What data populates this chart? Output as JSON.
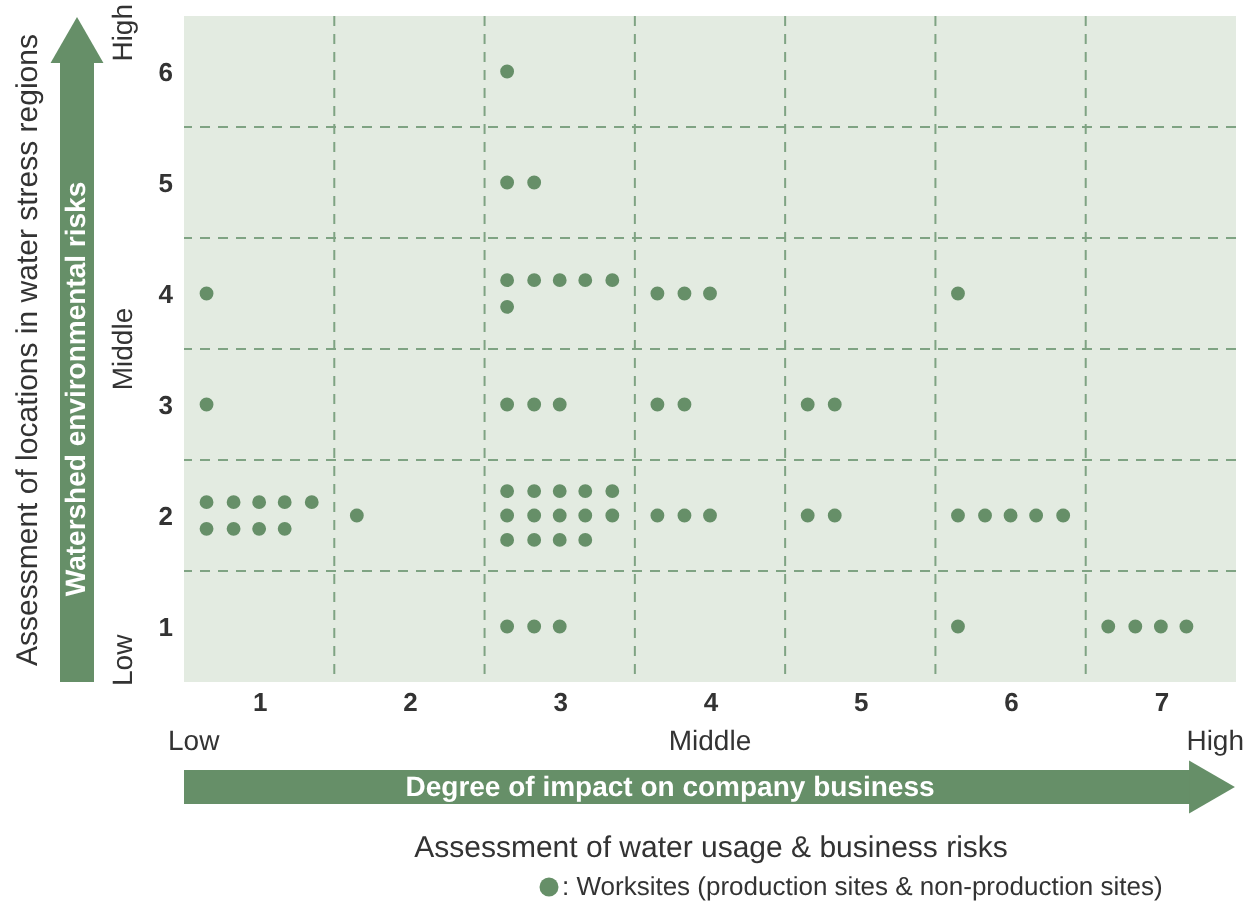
{
  "chart_data": {
    "type": "scatter",
    "xlabel": "Assessment of water usage & business risks",
    "ylabel": "Assessment of locations in water stress regions",
    "annotations": [
      "Low",
      "Middle",
      "High",
      "Low",
      "Middle",
      "High",
      "Degree of impact on company business",
      "Watershed environmental risks"
    ],
    "xlim": [
      0.5,
      7.5
    ],
    "ylim": [
      0.5,
      6.5
    ],
    "xticks": [
      1,
      {
        "value": 1.5,
        "label": null
      },
      2,
      {
        "value": 2.5,
        "label": null
      },
      3,
      {
        "value": 3.5,
        "label": null
      },
      4,
      {
        "value": 4.5,
        "label": null
      },
      5,
      {
        "value": 5.5,
        "label": null
      },
      6,
      {
        "value": 6.5,
        "label": null
      },
      7
    ],
    "yticks": [
      1,
      {
        "value": 1.5,
        "label": null
      },
      2,
      {
        "value": 2.5,
        "label": null
      },
      3,
      {
        "value": 3.5,
        "label": null
      },
      4,
      {
        "value": 4.5,
        "label": null
      },
      5,
      {
        "value": 5.5,
        "label": null
      },
      6
    ],
    "grid": true,
    "legend": "bottom right",
    "marker": "circle",
    "series": [
      {
        "name": ": Worksites (production sites & non-production sites)",
        "color": "#668f68",
        "x": [
          2.65,
          2.65,
          2.83,
          0.65,
          2.65,
          2.83,
          3.0,
          3.17,
          3.35,
          2.65,
          3.65,
          3.83,
          4.0,
          5.65,
          0.65,
          2.65,
          2.83,
          3.0,
          3.65,
          3.83,
          4.65,
          4.83,
          0.65,
          0.83,
          1.0,
          1.17,
          1.35,
          0.65,
          0.83,
          1.0,
          1.17,
          1.65,
          2.65,
          2.83,
          3.0,
          3.17,
          3.35,
          2.65,
          2.83,
          3.0,
          3.17,
          3.35,
          2.65,
          2.83,
          3.0,
          3.17,
          3.65,
          3.83,
          4.0,
          4.65,
          4.83,
          5.65,
          5.83,
          6.0,
          6.17,
          6.35,
          2.65,
          2.83,
          3.0,
          5.65,
          6.65,
          6.83,
          7.0,
          7.17
        ],
        "values": [
          6.0,
          5.0,
          5.0,
          4.0,
          4.12,
          4.12,
          4.12,
          4.12,
          4.12,
          3.88,
          4.0,
          4.0,
          4.0,
          4.0,
          3.0,
          3.0,
          3.0,
          3.0,
          3.0,
          3.0,
          3.0,
          3.0,
          2.12,
          2.12,
          2.12,
          2.12,
          2.12,
          1.88,
          1.88,
          1.88,
          1.88,
          2.0,
          2.22,
          2.22,
          2.22,
          2.22,
          2.22,
          2.0,
          2.0,
          2.0,
          2.0,
          2.0,
          1.78,
          1.78,
          1.78,
          1.78,
          2.0,
          2.0,
          2.0,
          2.0,
          2.0,
          2.0,
          2.0,
          2.0,
          2.0,
          2.0,
          1.0,
          1.0,
          1.0,
          1.0,
          1.0,
          1.0,
          1.0,
          1.0
        ]
      }
    ]
  }
}
